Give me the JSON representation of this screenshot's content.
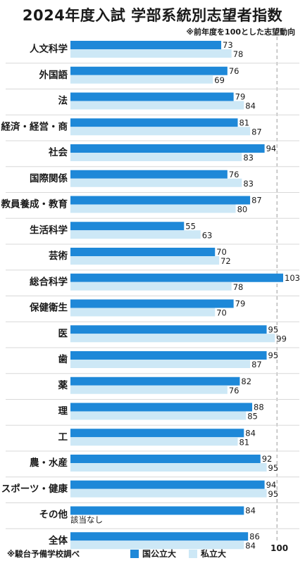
{
  "title": "2024年度入試 学部系統別志望者指数",
  "note": "※前年度を100とした志望動向",
  "source": "※駿台予備学校調べ",
  "reference_label": "100",
  "colors": {
    "national": "#1e88d8",
    "private": "#cde8f6"
  },
  "chart_data": {
    "type": "bar",
    "orientation": "horizontal",
    "categories": [
      "人文科学",
      "外国語",
      "法",
      "経済・経営・商",
      "社会",
      "国際関係",
      "教員養成・教育",
      "生活科学",
      "芸術",
      "総合科学",
      "保健衛生",
      "医",
      "歯",
      "薬",
      "理",
      "工",
      "農・水産",
      "スポーツ・健康",
      "その他",
      "全体"
    ],
    "series": [
      {
        "name": "国公立大",
        "values": [
          73,
          76,
          79,
          81,
          94,
          76,
          87,
          55,
          70,
          103,
          79,
          95,
          95,
          82,
          88,
          84,
          92,
          94,
          84,
          86
        ]
      },
      {
        "name": "私立大",
        "values": [
          78,
          69,
          84,
          87,
          83,
          83,
          80,
          63,
          72,
          78,
          70,
          99,
          87,
          76,
          85,
          81,
          95,
          95,
          null,
          84
        ]
      }
    ],
    "missing_labels": {
      "18": "該当なし"
    },
    "reference_line": 100,
    "xlim": [
      0,
      105
    ],
    "legend": "bottom"
  }
}
